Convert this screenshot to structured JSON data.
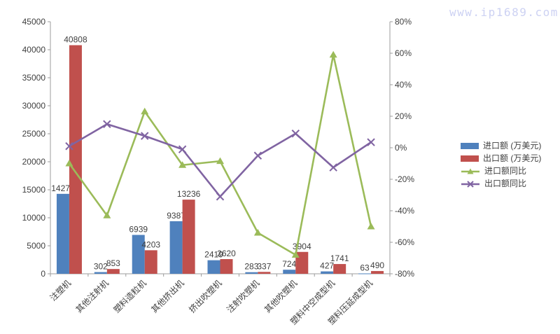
{
  "watermark": "www.ip1689.com",
  "colors": {
    "import_bar": "#4F81BD",
    "export_bar": "#C0504D",
    "import_yoy_line": "#9BBB59",
    "export_yoy_line": "#8064A2",
    "axis_line": "#9c9c9c",
    "text": "#3f3f3f",
    "watermark": "#cdd2f3"
  },
  "chart_data": {
    "type": "bar",
    "subtype": "combo-bar-line-dual-axis",
    "title": "",
    "xlabel": "",
    "ylabel_left": "",
    "ylabel_right": "",
    "grid": false,
    "legend_position": "right",
    "categories": [
      "注塑机",
      "其他注射机",
      "塑料造粒机",
      "其他挤出机",
      "挤出吹塑机",
      "注射吹塑机",
      "其他吹塑机",
      "塑料中空成型机",
      "塑料压延成型机"
    ],
    "series": [
      {
        "id": "import-amount",
        "name": "进口额 (万美元)",
        "type": "bar",
        "axis": "left",
        "color": "#4F81BD",
        "values": [
          14270,
          302,
          6939,
          9387,
          2419,
          283,
          724,
          427,
          63
        ],
        "labels": [
          "14270",
          "302",
          "6939",
          "9387",
          "2419",
          "283",
          "724",
          "427",
          "63"
        ]
      },
      {
        "id": "export-amount",
        "name": "出口额 (万美元)",
        "type": "bar",
        "axis": "left",
        "color": "#C0504D",
        "values": [
          40808,
          853,
          4203,
          13236,
          2620,
          337,
          3904,
          1741,
          490
        ],
        "labels": [
          "40808",
          "853",
          "4203",
          "13236",
          "2620",
          "337",
          "3904",
          "1741",
          "490"
        ]
      },
      {
        "id": "import-yoy",
        "name": "进口额同比",
        "type": "line",
        "axis": "right",
        "color": "#9BBB59",
        "marker": "triangle",
        "unit": "%",
        "values": [
          -10,
          -43,
          23,
          -11,
          -8.5,
          -54,
          -68,
          59,
          -50
        ]
      },
      {
        "id": "export-yoy",
        "name": "出口额同比",
        "type": "line",
        "axis": "right",
        "color": "#8064A2",
        "marker": "x",
        "unit": "%",
        "values": [
          1,
          15,
          7.5,
          -1,
          -31,
          -5,
          9,
          -12.5,
          3.5
        ]
      }
    ],
    "left_axis": {
      "min": 0,
      "max": 45000,
      "step": 5000,
      "ticks": [
        "0",
        "5000",
        "10000",
        "15000",
        "20000",
        "25000",
        "30000",
        "35000",
        "40000",
        "45000"
      ]
    },
    "right_axis": {
      "min": -80,
      "max": 80,
      "step": 20,
      "suffix": "%",
      "ticks": [
        "-80%",
        "-60%",
        "-40%",
        "-20%",
        "0%",
        "20%",
        "40%",
        "60%",
        "80%"
      ]
    }
  }
}
